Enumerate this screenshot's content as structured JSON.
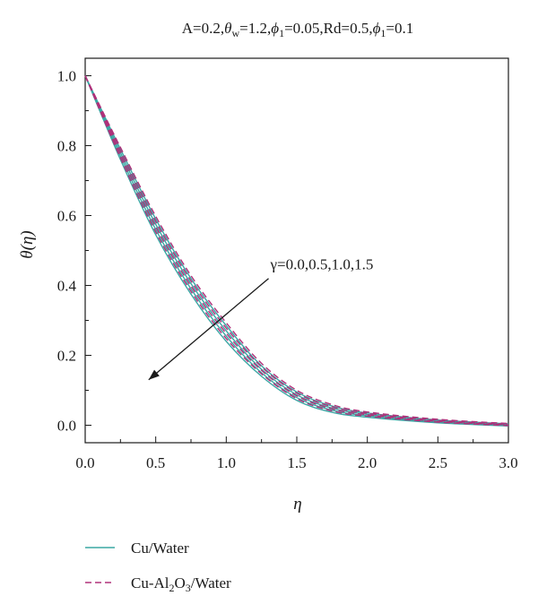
{
  "chart_data": {
    "type": "line",
    "title": {
      "p1": "A=0.2,",
      "theta": "θ",
      "theta_sub": "w",
      "p2": "=1.2,",
      "phi_a": "ϕ",
      "phi_a_sub": "1",
      "p3": "=0.05,Rd=0.5,",
      "phi_b": "ϕ",
      "phi_b_sub": "1",
      "p4": "=0.1"
    },
    "xlabel": "η",
    "ylabel": "θ(η)",
    "xlim": [
      0,
      3
    ],
    "ylim": [
      -0.05,
      1.05
    ],
    "x_ticks": [
      "0.0",
      "0.5",
      "1.0",
      "1.5",
      "2.0",
      "2.5",
      "3.0"
    ],
    "y_ticks": [
      "0.0",
      "0.2",
      "0.4",
      "0.6",
      "0.8",
      "1.0"
    ],
    "annotation": {
      "text": "γ=0.0,0.5,1.0,1.5",
      "from": [
        1.3,
        0.42
      ],
      "to": [
        0.45,
        0.13
      ]
    },
    "x": [
      0,
      0.25,
      0.5,
      0.75,
      1.0,
      1.25,
      1.5,
      1.75,
      2.0,
      2.5,
      3.0
    ],
    "series": [
      {
        "group": "cu",
        "gamma": "0.0",
        "values": [
          1.0,
          0.79,
          0.59,
          0.42,
          0.285,
          0.17,
          0.095,
          0.055,
          0.035,
          0.015,
          0.004
        ]
      },
      {
        "group": "cu",
        "gamma": "0.5",
        "values": [
          1.0,
          0.78,
          0.575,
          0.405,
          0.27,
          0.16,
          0.087,
          0.049,
          0.031,
          0.012,
          0.002
        ]
      },
      {
        "group": "cu",
        "gamma": "1.0",
        "values": [
          1.0,
          0.77,
          0.56,
          0.39,
          0.255,
          0.15,
          0.079,
          0.043,
          0.027,
          0.009,
          0.0
        ]
      },
      {
        "group": "cu",
        "gamma": "1.5",
        "values": [
          1.0,
          0.76,
          0.545,
          0.375,
          0.24,
          0.14,
          0.071,
          0.037,
          0.023,
          0.007,
          -0.002
        ]
      },
      {
        "group": "hybrid",
        "gamma": "0.0",
        "values": [
          1.0,
          0.795,
          0.598,
          0.428,
          0.293,
          0.177,
          0.1,
          0.059,
          0.038,
          0.017,
          0.005
        ]
      },
      {
        "group": "hybrid",
        "gamma": "0.5",
        "values": [
          1.0,
          0.785,
          0.583,
          0.413,
          0.278,
          0.167,
          0.092,
          0.053,
          0.034,
          0.014,
          0.003
        ]
      },
      {
        "group": "hybrid",
        "gamma": "1.0",
        "values": [
          1.0,
          0.775,
          0.568,
          0.398,
          0.263,
          0.157,
          0.084,
          0.047,
          0.03,
          0.011,
          0.001
        ]
      },
      {
        "group": "hybrid",
        "gamma": "1.5",
        "values": [
          1.0,
          0.765,
          0.553,
          0.383,
          0.248,
          0.147,
          0.076,
          0.041,
          0.026,
          0.009,
          -0.001
        ]
      }
    ],
    "legend": [
      {
        "group": "cu",
        "style": "solid",
        "color": "#3aa7a4",
        "parts": [
          {
            "t": "Cu/Water"
          }
        ]
      },
      {
        "group": "hybrid",
        "style": "dashed",
        "color": "#b0307a",
        "parts": [
          {
            "t": "Cu-Al"
          },
          {
            "t": "2",
            "sub": true
          },
          {
            "t": "O"
          },
          {
            "t": "3",
            "sub": true
          },
          {
            "t": "/Water"
          }
        ]
      }
    ],
    "grid": false,
    "legend_position": "below"
  }
}
